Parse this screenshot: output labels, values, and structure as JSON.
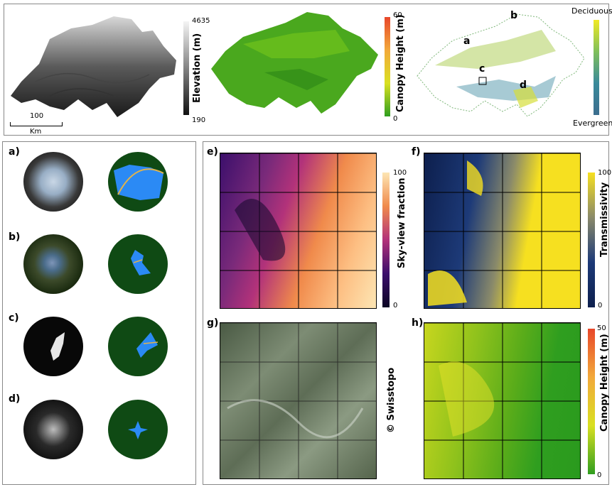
{
  "top": {
    "elevation": {
      "max": "4635",
      "min": "190",
      "label": "Elevation (m)"
    },
    "canopy": {
      "max": "60",
      "min": "0",
      "label": "Canopy Height (m)"
    },
    "forest_type": {
      "top": "Deciduous",
      "bottom": "Evergreen"
    },
    "scale": {
      "value": "100",
      "unit": "Km"
    },
    "map_labels": {
      "a": "a",
      "b": "b",
      "c": "c",
      "d": "d"
    }
  },
  "left_panel": {
    "rows": [
      "a)",
      "b)",
      "c)",
      "d)"
    ]
  },
  "right_panel": {
    "e": {
      "label": "e)",
      "colorbar_label": "Sky-view fraction",
      "max": "100",
      "min": "0"
    },
    "f": {
      "label": "f)",
      "colorbar_label": "Transmissivity",
      "max": "100",
      "min": "0"
    },
    "g": {
      "label": "g)",
      "credit": "© Swisstopo"
    },
    "h": {
      "label": "h)",
      "colorbar_label": "Canopy Height (m)",
      "max": "50",
      "min": "0"
    }
  },
  "colors": {
    "elevation_gradient": [
      "#f5f5f5",
      "#111111"
    ],
    "canopy_gradient": [
      "#e8472a",
      "#f2a93b",
      "#d9e021",
      "#2f9e1f"
    ],
    "forest_gradient": [
      "#f0e924",
      "#7fbf5a",
      "#3a8a9a",
      "#3c6e8f"
    ],
    "skyview_gradient": [
      "#fde6b4",
      "#f08a4b",
      "#b2327a",
      "#3b0f6b",
      "#0b0524"
    ],
    "transmissivity_gradient": [
      "#f6e020",
      "#8a8a6a",
      "#1d3a78",
      "#0d1f4d"
    ],
    "fisheye_green": "#0f4a14",
    "sky_blue": "#2b8af5"
  }
}
